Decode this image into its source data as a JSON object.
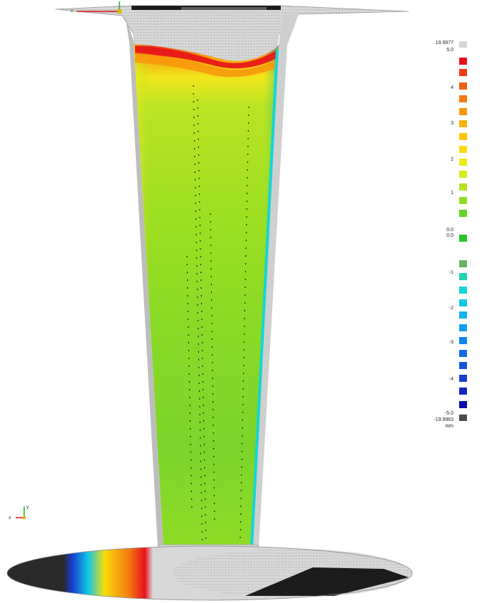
{
  "colormap": {
    "labels": {
      "top_overflow": "19.9977",
      "max": "5.0",
      "t4": "4",
      "t3": "3",
      "t2": "2",
      "t1": "1",
      "zero_upper": "0.0",
      "zero_lower": "0.0",
      "tm1": "-1",
      "tm2": "-2",
      "tm3": "-3",
      "tm4": "-4",
      "min": "-5.0",
      "bottom_overflow": "-19.9963",
      "unit": "mm"
    },
    "swatches": [
      "#d6d6d6",
      "#e8101a",
      "#ee3a13",
      "#f25f12",
      "#f47c10",
      "#f8970c",
      "#fbb10a",
      "#fcc709",
      "#f7dc0c",
      "#ecec14",
      "#d6ea1a",
      "#b7e320",
      "#90db23",
      "#63d229",
      "#2ac52b",
      "#63b55f",
      "#1fd3b3",
      "#12d6d4",
      "#10c9e8",
      "#0fb5f0",
      "#0e9ff2",
      "#0f86ee",
      "#136ce6",
      "#1654dc",
      "#1a3cd0",
      "#1525c0",
      "#0a0ab0",
      "#4a4a4a"
    ]
  },
  "colors": {
    "nominal": "#d7d7d7",
    "out_of_range_low": "#2b2b2b"
  },
  "triad": {
    "x_label": "x",
    "y_label": "y"
  },
  "icons": {
    "triad": "axis-triad-icon",
    "origin": "coordinate-origin-icon"
  }
}
